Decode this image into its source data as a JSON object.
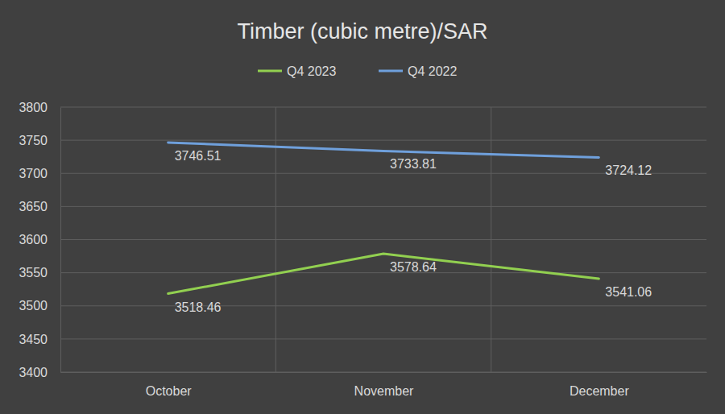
{
  "chart_data": {
    "type": "line",
    "title": "Timber (cubic metre)/SAR",
    "categories": [
      "October",
      "November",
      "December"
    ],
    "series": [
      {
        "name": "Q4 2023",
        "color": "#92d050",
        "values": [
          3518.46,
          3578.64,
          3541.06
        ]
      },
      {
        "name": "Q4 2022",
        "color": "#6fa0dc",
        "values": [
          3746.51,
          3733.81,
          3724.12
        ]
      }
    ],
    "ylim": [
      3400,
      3800
    ],
    "yticks": [
      3400,
      3450,
      3500,
      3550,
      3600,
      3650,
      3700,
      3750,
      3800
    ],
    "grid": true,
    "legend": "top",
    "data_labels": true
  }
}
